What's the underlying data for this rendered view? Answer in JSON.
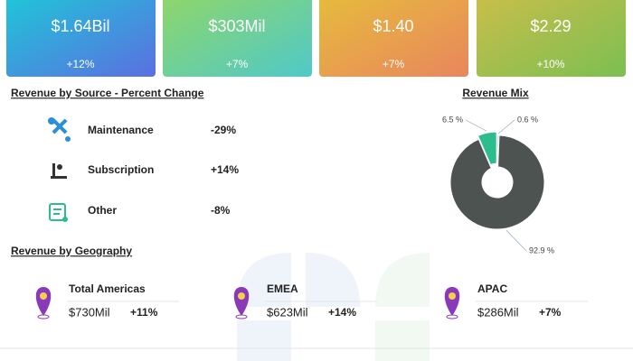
{
  "kpis": [
    {
      "value": "$1.64Bil",
      "change": "+12%"
    },
    {
      "value": "$303Mil",
      "change": "+7%"
    },
    {
      "value": "$1.40",
      "change": "+7%"
    },
    {
      "value": "$2.29",
      "change": "+10%"
    }
  ],
  "revenue_by_source": {
    "title": "Revenue by Source - Percent Change",
    "rows": [
      {
        "label": "Maintenance",
        "change": "-29%"
      },
      {
        "label": "Subscription",
        "change": "+14%"
      },
      {
        "label": "Other",
        "change": "-8%"
      }
    ]
  },
  "revenue_mix": {
    "type": "pie",
    "title": "Revenue Mix",
    "values": [
      0.6,
      92.9,
      6.5
    ],
    "value_labels": [
      "0.6 %",
      "92.9 %",
      "6.5 %"
    ],
    "colors": [
      "#a9c8dc",
      "#4d5351",
      "#2dbd8c"
    ]
  },
  "geography": {
    "title": "Revenue by Geography",
    "regions": [
      {
        "name": "Total Americas",
        "revenue": "$730Mil",
        "change": "+11%"
      },
      {
        "name": "EMEA",
        "revenue": "$623Mil",
        "change": "+14%"
      },
      {
        "name": "APAC",
        "revenue": "$286Mil",
        "change": "+7%"
      }
    ]
  }
}
